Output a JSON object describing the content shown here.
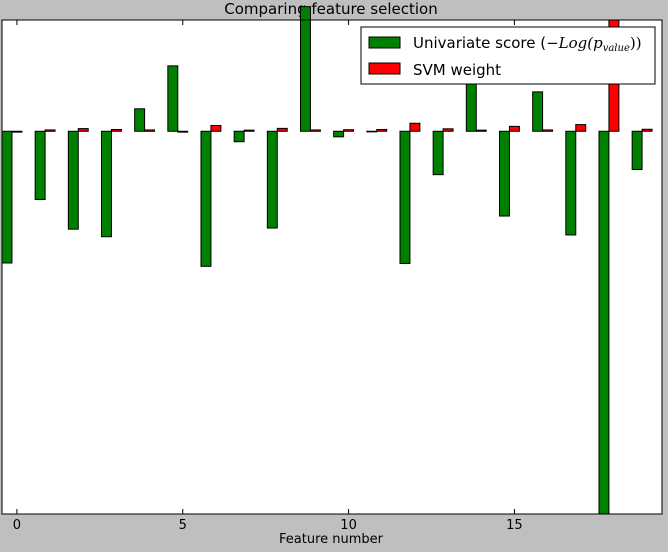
{
  "chart_data": {
    "type": "bar",
    "title": "Comparing feature selection",
    "xlabel": "Feature number",
    "ylabel": "",
    "xlim": [
      -0.45,
      19.45
    ],
    "ylim": [
      -1.72,
      0.5
    ],
    "x_ticks": [
      0,
      5,
      10,
      15
    ],
    "y_ticks_visible": false,
    "grid": false,
    "legend_position": "upper right",
    "x": [
      0,
      1,
      2,
      3,
      4,
      5,
      6,
      7,
      8,
      9,
      10,
      11,
      12,
      13,
      14,
      15,
      16,
      17,
      18,
      19
    ],
    "bar_width": 0.3,
    "series": [
      {
        "name": "Univariate score",
        "color": "#008000",
        "offset": -0.45,
        "values": [
          -0.592,
          -0.307,
          -0.44,
          -0.474,
          0.101,
          0.294,
          -0.607,
          -0.047,
          -0.435,
          0.56,
          -0.025,
          -0.002,
          -0.594,
          -0.195,
          0.236,
          -0.381,
          0.177,
          -0.466,
          -1.72,
          -0.172
        ]
      },
      {
        "name": "SVM weight",
        "color": "#ff0000",
        "offset": -0.15,
        "values": [
          -0.004,
          0.006,
          0.012,
          0.008,
          0.006,
          -0.004,
          0.026,
          0.005,
          0.013,
          0.006,
          0.007,
          0.008,
          0.036,
          0.011,
          0.005,
          0.022,
          0.006,
          0.03,
          0.5,
          0.009
        ]
      }
    ]
  },
  "legend": {
    "univariate_prefix": "Univariate score (",
    "univariate_math": "−Log(p",
    "univariate_sub": "value",
    "univariate_suffix": "))",
    "svm_label": "SVM weight"
  }
}
